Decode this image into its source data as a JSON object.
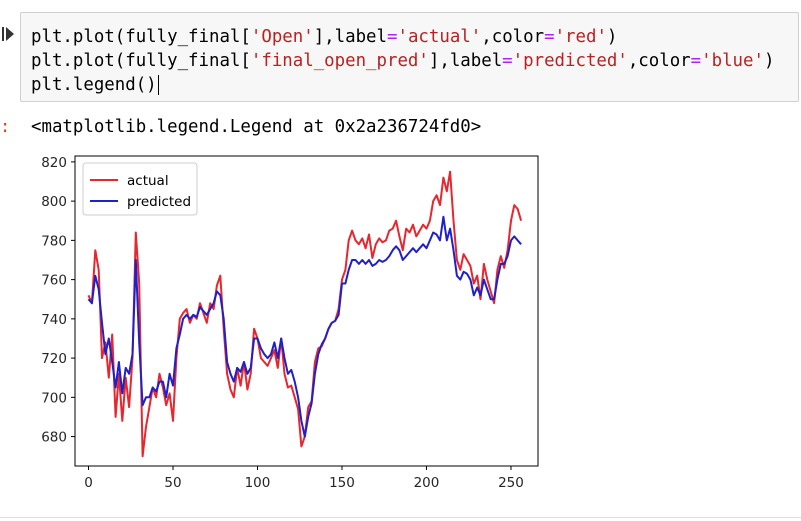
{
  "cell": {
    "lines": [
      [
        {
          "t": "plt.plot(fully_final[",
          "c": "plain"
        },
        {
          "t": "'Open'",
          "c": "str"
        },
        {
          "t": "],label",
          "c": "plain"
        },
        {
          "t": "=",
          "c": "op"
        },
        {
          "t": "'actual'",
          "c": "str"
        },
        {
          "t": ",color",
          "c": "plain"
        },
        {
          "t": "=",
          "c": "op"
        },
        {
          "t": "'red'",
          "c": "str"
        },
        {
          "t": ")",
          "c": "plain"
        }
      ],
      [
        {
          "t": "plt.plot(fully_final[",
          "c": "plain"
        },
        {
          "t": "'final_open_pred'",
          "c": "str"
        },
        {
          "t": "],label",
          "c": "plain"
        },
        {
          "t": "=",
          "c": "op"
        },
        {
          "t": "'predicted'",
          "c": "str"
        },
        {
          "t": ",color",
          "c": "plain"
        },
        {
          "t": "=",
          "c": "op"
        },
        {
          "t": "'blue'",
          "c": "str"
        },
        {
          "t": ")",
          "c": "plain"
        }
      ],
      [
        {
          "t": "plt.legend()",
          "c": "plain"
        }
      ]
    ]
  },
  "output": {
    "prompt": ":",
    "text": "<matplotlib.legend.Legend at 0x2a236724fd0>"
  },
  "colors": {
    "actual": "#e8262e",
    "predicted": "#2020c8",
    "string": "#ba2121",
    "operator": "#aa22ff",
    "out_prompt": "#d84315"
  },
  "chart_data": {
    "type": "line",
    "xlim": [
      -8,
      266
    ],
    "ylim": [
      665,
      823
    ],
    "xticks": [
      0,
      50,
      100,
      150,
      200,
      250
    ],
    "yticks": [
      680,
      700,
      720,
      740,
      760,
      780,
      800,
      820
    ],
    "legend": {
      "position": "upper-left"
    },
    "series": [
      {
        "name": "actual",
        "color": "#e8262e",
        "x": [
          0,
          2,
          4,
          6,
          8,
          10,
          12,
          14,
          16,
          18,
          20,
          22,
          24,
          26,
          28,
          30,
          32,
          34,
          36,
          38,
          40,
          42,
          44,
          46,
          48,
          50,
          52,
          54,
          56,
          58,
          60,
          62,
          64,
          66,
          68,
          70,
          72,
          74,
          76,
          78,
          80,
          82,
          84,
          86,
          88,
          90,
          92,
          94,
          96,
          98,
          100,
          102,
          104,
          106,
          108,
          110,
          112,
          114,
          116,
          118,
          120,
          122,
          124,
          126,
          128,
          130,
          132,
          134,
          136,
          138,
          140,
          142,
          144,
          146,
          148,
          150,
          152,
          154,
          156,
          158,
          160,
          162,
          164,
          166,
          168,
          170,
          172,
          174,
          176,
          178,
          180,
          182,
          184,
          186,
          188,
          190,
          192,
          194,
          196,
          198,
          200,
          202,
          204,
          206,
          208,
          210,
          212,
          214,
          216,
          218,
          220,
          222,
          224,
          226,
          228,
          230,
          232,
          234,
          236,
          238,
          240,
          242,
          244,
          246,
          248,
          250,
          252,
          254,
          256
        ],
        "y": [
          752,
          748,
          775,
          765,
          720,
          728,
          710,
          732,
          690,
          712,
          688,
          710,
          695,
          720,
          784,
          758,
          670,
          685,
          695,
          705,
          700,
          712,
          705,
          696,
          702,
          688,
          720,
          740,
          743,
          745,
          738,
          742,
          740,
          748,
          743,
          738,
          748,
          745,
          757,
          762,
          735,
          712,
          704,
          700,
          715,
          706,
          718,
          704,
          712,
          735,
          730,
          720,
          718,
          716,
          720,
          724,
          715,
          730,
          712,
          705,
          706,
          700,
          694,
          675,
          680,
          695,
          698,
          718,
          725,
          726,
          730,
          735,
          738,
          739,
          745,
          760,
          765,
          780,
          785,
          780,
          778,
          781,
          776,
          783,
          771,
          778,
          781,
          779,
          780,
          785,
          786,
          790,
          782,
          775,
          786,
          784,
          788,
          782,
          785,
          788,
          786,
          790,
          800,
          803,
          798,
          812,
          805,
          815,
          790,
          770,
          765,
          773,
          770,
          767,
          758,
          762,
          750,
          768,
          760,
          754,
          748,
          765,
          772,
          766,
          775,
          790,
          798,
          796,
          790
        ]
      },
      {
        "name": "predicted",
        "color": "#2020c8",
        "x": [
          0,
          2,
          4,
          6,
          8,
          10,
          12,
          14,
          16,
          18,
          20,
          22,
          24,
          26,
          28,
          30,
          32,
          34,
          36,
          38,
          40,
          42,
          44,
          46,
          48,
          50,
          52,
          54,
          56,
          58,
          60,
          62,
          64,
          66,
          68,
          70,
          72,
          74,
          76,
          78,
          80,
          82,
          84,
          86,
          88,
          90,
          92,
          94,
          96,
          98,
          100,
          102,
          104,
          106,
          108,
          110,
          112,
          114,
          116,
          118,
          120,
          122,
          124,
          126,
          128,
          130,
          132,
          134,
          136,
          138,
          140,
          142,
          144,
          146,
          148,
          150,
          152,
          154,
          156,
          158,
          160,
          162,
          164,
          166,
          168,
          170,
          172,
          174,
          176,
          178,
          180,
          182,
          184,
          186,
          188,
          190,
          192,
          194,
          196,
          198,
          200,
          202,
          204,
          206,
          208,
          210,
          212,
          214,
          216,
          218,
          220,
          222,
          224,
          226,
          228,
          230,
          232,
          234,
          236,
          238,
          240,
          242,
          244,
          246,
          248,
          250,
          252,
          254,
          256
        ],
        "y": [
          750,
          748,
          762,
          755,
          738,
          722,
          730,
          718,
          705,
          718,
          702,
          715,
          712,
          722,
          770,
          728,
          696,
          700,
          700,
          705,
          703,
          708,
          708,
          700,
          712,
          706,
          725,
          732,
          740,
          742,
          740,
          742,
          741,
          746,
          744,
          742,
          745,
          748,
          754,
          752,
          740,
          718,
          712,
          708,
          715,
          713,
          718,
          712,
          715,
          730,
          730,
          725,
          722,
          720,
          722,
          728,
          720,
          730,
          720,
          712,
          714,
          708,
          700,
          688,
          680,
          690,
          697,
          712,
          722,
          727,
          730,
          735,
          738,
          739,
          742,
          758,
          758,
          765,
          770,
          770,
          768,
          770,
          768,
          770,
          767,
          768,
          770,
          769,
          770,
          772,
          775,
          777,
          775,
          770,
          772,
          774,
          776,
          774,
          776,
          778,
          776,
          780,
          784,
          783,
          780,
          792,
          780,
          786,
          775,
          762,
          760,
          764,
          763,
          760,
          752,
          756,
          752,
          760,
          755,
          750,
          750,
          760,
          768,
          768,
          772,
          780,
          782,
          780,
          778
        ]
      }
    ]
  }
}
